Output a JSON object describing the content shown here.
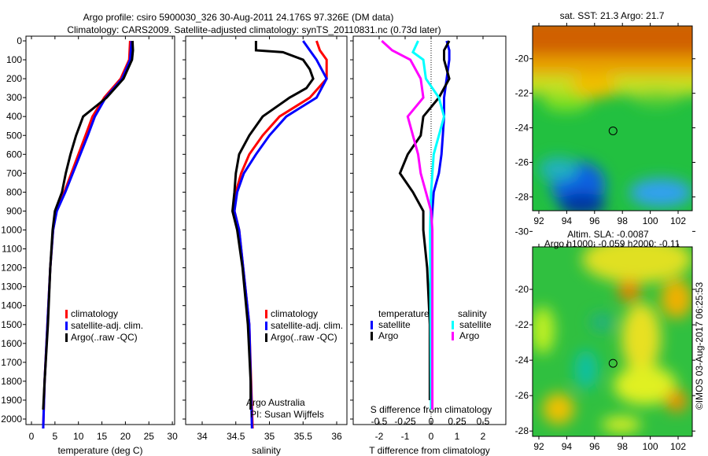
{
  "title": {
    "line1": "Argo profile: csiro 5900030_326 30-Aug-2011 24.176S 97.326E (DM data)",
    "line2": "Climatology: CARS2009. Satellite-adjusted climatology: synTS_20110831.nc (0.73d later)"
  },
  "colors": {
    "climatology": "#ff0000",
    "satellite": "#0000ff",
    "argo": "#000000",
    "sal_satellite": "#00ffff",
    "sal_argo": "#ff00ff"
  },
  "chart_data": [
    {
      "type": "line",
      "xlabel": "temperature (deg C)",
      "ylabel": "depth",
      "xlim": [
        -1,
        31
      ],
      "ylim": [
        2050,
        0
      ],
      "xticks": [
        0,
        5,
        10,
        15,
        20,
        25,
        30
      ],
      "yticks": [
        0,
        100,
        200,
        300,
        400,
        500,
        600,
        700,
        800,
        900,
        1000,
        1100,
        1200,
        1300,
        1400,
        1500,
        1600,
        1700,
        1800,
        1900,
        2000
      ],
      "legend": [
        "climatology",
        "satellite-adj. clim.",
        "Argo(..raw -QC)"
      ],
      "series": [
        {
          "name": "climatology",
          "color": "#ff0000",
          "depth": [
            0,
            100,
            200,
            300,
            400,
            500,
            600,
            700,
            800,
            900,
            1000,
            1200,
            1500,
            1800,
            2050
          ],
          "values": [
            21,
            20.8,
            19,
            15.5,
            13,
            11.5,
            10,
            8.5,
            7,
            5.3,
            4.6,
            4,
            3.4,
            2.8,
            2.5
          ]
        },
        {
          "name": "satellite-adj. clim.",
          "color": "#0000ff",
          "depth": [
            0,
            100,
            200,
            300,
            400,
            500,
            600,
            700,
            800,
            900,
            1000,
            1200,
            1500,
            1800,
            2050
          ],
          "values": [
            21.3,
            21,
            19.3,
            15.8,
            13.5,
            12,
            10.4,
            8.8,
            7.2,
            5.4,
            4.6,
            4,
            3.4,
            2.8,
            2.5
          ]
        },
        {
          "name": "Argo(..raw -QC)",
          "color": "#000000",
          "depth": [
            0,
            50,
            100,
            200,
            300,
            400,
            500,
            600,
            700,
            800,
            900,
            1000,
            1200,
            1500,
            1800,
            1950
          ],
          "values": [
            21.5,
            21.6,
            21.4,
            19.6,
            16,
            11,
            9.5,
            8.3,
            7.3,
            6.5,
            5,
            4.5,
            4,
            3.5,
            2.8,
            2.5
          ]
        }
      ]
    },
    {
      "type": "line",
      "xlabel": "salinity",
      "xlim": [
        33.75,
        36.15
      ],
      "ylim": [
        2050,
        0
      ],
      "xticks": [
        34,
        34.5,
        35,
        35.5,
        36
      ],
      "legend": [
        "climatology",
        "satellite-adj. clim.",
        "Argo(..raw -QC)"
      ],
      "annotation": [
        "Argo Australia",
        "PI: Susan Wijffels"
      ],
      "series": [
        {
          "name": "climatology",
          "color": "#ff0000",
          "depth": [
            0,
            50,
            100,
            200,
            300,
            400,
            500,
            600,
            700,
            800,
            900,
            1000,
            1500,
            2050
          ],
          "values": [
            35.7,
            35.75,
            35.85,
            35.85,
            35.6,
            35.15,
            34.9,
            34.7,
            34.58,
            34.5,
            34.48,
            34.55,
            34.7,
            34.75
          ]
        },
        {
          "name": "satellite-adj. clim.",
          "color": "#0000ff",
          "depth": [
            0,
            50,
            100,
            200,
            300,
            400,
            500,
            600,
            700,
            800,
            900,
            1000,
            1500,
            2050
          ],
          "values": [
            35.5,
            35.6,
            35.7,
            35.85,
            35.7,
            35.25,
            35.0,
            34.8,
            34.62,
            34.52,
            34.48,
            34.55,
            34.7,
            34.74
          ]
        },
        {
          "name": "Argo(..raw -QC)",
          "color": "#000000",
          "depth": [
            0,
            50,
            60,
            100,
            150,
            200,
            250,
            300,
            400,
            500,
            600,
            700,
            800,
            900,
            1000,
            1200,
            1500,
            1800,
            1950
          ],
          "values": [
            34.8,
            34.8,
            35.2,
            35.5,
            35.6,
            35.65,
            35.55,
            35.3,
            34.9,
            34.7,
            34.55,
            34.5,
            34.48,
            34.45,
            34.52,
            34.6,
            34.68,
            34.72,
            34.72
          ]
        }
      ]
    },
    {
      "type": "line",
      "xlabel": "T difference from climatology",
      "x2label": "S difference from climatology",
      "xlim": [
        -3,
        3
      ],
      "x2lim": [
        -0.75,
        0.75
      ],
      "ylim": [
        2050,
        0
      ],
      "xticks": [
        -2,
        -1,
        0,
        1,
        2
      ],
      "x2ticks": [
        -0.5,
        -0.25,
        0,
        0.25,
        0.5
      ],
      "legend_temperature": {
        "title": "temperature",
        "items": [
          "satellite",
          "Argo"
        ]
      },
      "legend_salinity": {
        "title": "salinity",
        "items": [
          "satellite",
          "Argo"
        ]
      },
      "series": [
        {
          "name": "T satellite",
          "axis": "T",
          "color": "#0000ff",
          "depth": [
            0,
            50,
            100,
            200,
            300,
            400,
            500,
            600,
            700,
            800,
            900,
            1000,
            1950
          ],
          "values": [
            0.6,
            0.7,
            0.7,
            0.6,
            0.5,
            0.5,
            0.45,
            0.4,
            0.3,
            0.1,
            0.05,
            0,
            0
          ]
        },
        {
          "name": "T Argo",
          "axis": "T",
          "color": "#000000",
          "depth": [
            0,
            50,
            100,
            200,
            300,
            400,
            500,
            600,
            700,
            800,
            900,
            1000,
            1200,
            1500,
            1900
          ],
          "values": [
            0.7,
            0.5,
            0.5,
            0.7,
            0.3,
            -0.3,
            -0.4,
            -0.9,
            -1.2,
            -0.7,
            -0.3,
            -0.3,
            -0.15,
            -0.05,
            -0.05
          ]
        },
        {
          "name": "S satellite",
          "axis": "S",
          "color": "#00ffff",
          "depth": [
            0,
            60,
            100,
            200,
            300,
            400,
            500,
            600,
            800,
            1000,
            1950
          ],
          "values": [
            -0.125,
            -0.175,
            -0.075,
            -0.05,
            0.075,
            0.125,
            0.075,
            0.025,
            0,
            -0.01,
            0
          ]
        },
        {
          "name": "S Argo",
          "axis": "S",
          "color": "#ff00ff",
          "depth": [
            0,
            50,
            100,
            200,
            300,
            400,
            500,
            600,
            700,
            800,
            900,
            1000,
            1950
          ],
          "values": [
            -0.475,
            -0.375,
            -0.2,
            -0.1,
            -0.075,
            -0.225,
            -0.175,
            -0.125,
            -0.1,
            -0.05,
            0,
            0.0125,
            0.0125
          ]
        }
      ]
    }
  ],
  "map_sst": {
    "title": "sat. SST: 21.3 Argo: 21.7",
    "xticks": [
      "92",
      "94",
      "96",
      "98",
      "100",
      "102"
    ],
    "yticks": [
      "-20",
      "-22",
      "-24",
      "-26",
      "-28",
      "-30"
    ],
    "argo_lon": 97.326,
    "argo_lat": -24.176
  },
  "map_sla": {
    "title1": "Altim. SLA: -0.0087",
    "title2": "Argo h1000: -0.059 h2000: -0.11",
    "xticks": [
      "92",
      "94",
      "96",
      "98",
      "100",
      "102"
    ],
    "yticks": [
      "-20",
      "-22",
      "-24",
      "-26",
      "-28",
      "-30"
    ]
  },
  "credit": "©IMOS 03-Aug-2017 06:25:53"
}
